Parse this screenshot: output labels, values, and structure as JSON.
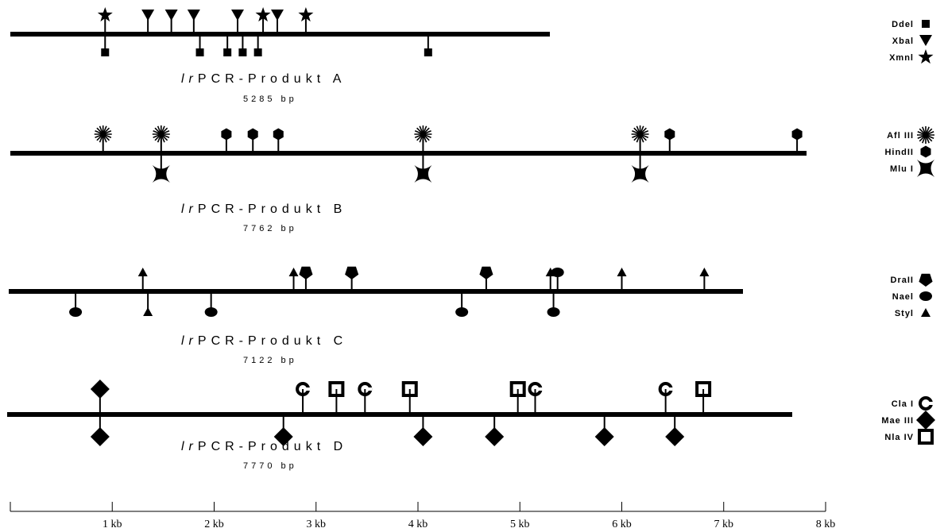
{
  "products": [
    {
      "id": "A",
      "prefix": "lr",
      "title": "PCR-Produkt A",
      "size": "5285 bp",
      "enzymes": [
        {
          "name": "DdeI",
          "label": "Ddel",
          "symbol": "square",
          "side": "below",
          "sites_kb": [
            0.93,
            1.86,
            2.13,
            2.28,
            2.43,
            4.1
          ]
        },
        {
          "name": "XbaI",
          "label": "Xbal",
          "symbol": "triangle-down",
          "side": "above",
          "sites_kb": [
            1.35,
            1.58,
            1.8,
            2.23,
            2.62
          ]
        },
        {
          "name": "XmnI",
          "label": "Xmnl",
          "symbol": "star",
          "side": "above",
          "sites_kb": [
            0.93,
            2.48,
            2.9
          ]
        }
      ]
    },
    {
      "id": "B",
      "prefix": "lr",
      "title": "PCR-Produkt B",
      "size": "7762 bp",
      "enzymes": [
        {
          "name": "AflIII",
          "label": "Afl III",
          "symbol": "burst",
          "side": "above",
          "sites_kb": [
            0.91,
            1.48,
            4.05,
            6.18
          ]
        },
        {
          "name": "HindII",
          "label": "HindII",
          "symbol": "hexagon",
          "side": "above",
          "sites_kb": [
            2.12,
            2.38,
            2.63,
            6.47,
            7.72
          ]
        },
        {
          "name": "MluI",
          "label": "Mlu I",
          "symbol": "bowtie",
          "side": "below",
          "sites_kb": [
            1.48,
            4.05,
            6.18
          ]
        }
      ]
    },
    {
      "id": "C",
      "prefix": "lr",
      "title": "PCR-Produkt C",
      "size": "7122 bp",
      "enzymes": [
        {
          "name": "DraII",
          "label": "DraII",
          "symbol": "pentagon",
          "side": "above",
          "sites_kb": [
            2.9,
            3.35,
            4.67
          ]
        },
        {
          "name": "NaeI",
          "label": "Nael",
          "symbol": "ellipse",
          "side": "below",
          "sites_kb": [
            0.64,
            1.97,
            4.43,
            5.33
          ]
        },
        {
          "name": "NaeI-upper",
          "label": "",
          "symbol": "ellipse",
          "side": "above",
          "sites_kb": [
            5.37
          ]
        },
        {
          "name": "StyI",
          "label": "Styl",
          "symbol": "triangle-up",
          "side": "above",
          "sites_kb": [
            1.3,
            2.78,
            5.3,
            6.0,
            6.81
          ]
        },
        {
          "name": "StyI-lower",
          "label": "",
          "symbol": "triangle-up",
          "side": "below",
          "sites_kb": [
            1.35
          ]
        }
      ]
    },
    {
      "id": "D",
      "prefix": "lr",
      "title": "PCR-Produkt D",
      "size": "7770 bp",
      "enzymes": [
        {
          "name": "ClaI",
          "label": "Cla I",
          "symbol": "ring",
          "side": "above",
          "sites_kb": [
            2.87,
            3.48,
            5.15,
            6.43
          ]
        },
        {
          "name": "MaeIII",
          "label": "Mae III",
          "symbol": "diamond",
          "side": "below",
          "sites_kb": [
            0.88,
            2.68,
            4.05,
            4.75,
            5.83,
            6.52
          ]
        },
        {
          "name": "MaeIII-upper",
          "label": "",
          "symbol": "diamond",
          "side": "above",
          "sites_kb": [
            0.88
          ]
        },
        {
          "name": "NlaIV",
          "label": "Nla IV",
          "symbol": "hollow-square",
          "side": "above",
          "sites_kb": [
            3.2,
            3.92,
            4.98,
            6.8
          ]
        }
      ]
    }
  ],
  "scale": {
    "ticks": [
      {
        "kb": 1,
        "label": "1 kb"
      },
      {
        "kb": 2,
        "label": "2 kb"
      },
      {
        "kb": 3,
        "label": "3 kb"
      },
      {
        "kb": 4,
        "label": "4 kb"
      },
      {
        "kb": 5,
        "label": "5 kb"
      },
      {
        "kb": 6,
        "label": "6 kb"
      },
      {
        "kb": 7,
        "label": "7 kb"
      },
      {
        "kb": 8,
        "label": "8 kb"
      }
    ]
  },
  "colors": {
    "ink": "#000000",
    "background": "#ffffff"
  }
}
